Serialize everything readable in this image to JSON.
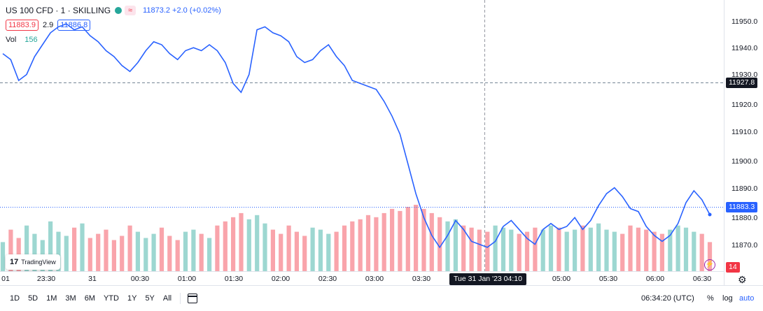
{
  "symbol": {
    "title": "US 100 CFD · 1 · SKILLING",
    "quote": "11873.2  +2.0 (+0.02%)",
    "sell": "11883.9",
    "spread": "2.9",
    "buy": "11886.8",
    "vol_label": "Vol",
    "vol_value": "156",
    "badge": "≈"
  },
  "colors": {
    "line": "#2962ff",
    "vol_up": "#26a69a",
    "vol_down": "#f23645",
    "last_tag": "#2962ff",
    "crosshair_tag": "#131722"
  },
  "price_axis": {
    "labels": [
      "11950.0",
      "11940.0",
      "11930.0",
      "11920.0",
      "11910.0",
      "11900.0",
      "11890.0",
      "11880.0",
      "11870.0"
    ],
    "crosshair_price": "11927.8",
    "last_price": "11883.3",
    "volume_value": "14"
  },
  "time_axis": {
    "labels": [
      "01",
      "23:30",
      "31",
      "00:30",
      "01:00",
      "01:30",
      "02:00",
      "02:30",
      "03:00",
      "03:30",
      "04:10",
      "05:00",
      "05:30",
      "06:00",
      "06:30"
    ],
    "crosshair_label": "Tue 31 Jan '23   04:10"
  },
  "logo": {
    "text": "TradingView"
  },
  "chart_data": {
    "type": "line",
    "series": [
      {
        "values": [
          11937,
          11935,
          11928,
          11930,
          11936,
          11940,
          11944,
          11946,
          11947,
          11945,
          11946,
          11943,
          11941,
          11938,
          11936,
          11933,
          11931,
          11934,
          11938,
          11941,
          11940,
          11937,
          11935,
          11938,
          11939,
          11938,
          11940,
          11938,
          11934,
          11927,
          11924,
          11930,
          11945,
          11946,
          11944,
          11943,
          11941,
          11936,
          11934,
          11935,
          11938,
          11940,
          11936,
          11933,
          11928,
          11927,
          11926,
          11925,
          11921,
          11916,
          11910,
          11900,
          11890,
          11882,
          11876,
          11872,
          11876,
          11881,
          11878,
          11874,
          11873,
          11872,
          11874,
          11879,
          11881,
          11878,
          11875,
          11873,
          11878,
          11880,
          11878,
          11879,
          11882,
          11878,
          11881,
          11886,
          11890,
          11892,
          11889,
          11885,
          11884,
          11879,
          11876,
          11874,
          11876,
          11880,
          11887,
          11891,
          11888,
          11883
        ]
      }
    ],
    "volume_values": [
      14,
      20,
      16,
      22,
      18,
      15,
      24,
      19,
      17,
      21,
      23,
      16,
      18,
      20,
      15,
      17,
      22,
      19,
      16,
      18,
      21,
      17,
      15,
      19,
      20,
      18,
      16,
      22,
      24,
      26,
      28,
      25,
      27,
      23,
      20,
      18,
      22,
      19,
      17,
      21,
      20,
      18,
      19,
      22,
      24,
      25,
      27,
      26,
      28,
      30,
      29,
      31,
      32,
      30,
      28,
      26,
      24,
      25,
      22,
      21,
      20,
      19,
      22,
      21,
      20,
      18,
      19,
      21,
      20,
      22,
      21,
      19,
      20,
      22,
      21,
      23,
      20,
      19,
      18,
      22,
      21,
      20,
      19,
      18,
      20,
      22,
      21,
      19,
      18,
      14
    ],
    "ylim": [
      11864,
      11955
    ]
  },
  "controls": {
    "ranges": [
      "1D",
      "5D",
      "1M",
      "3M",
      "6M",
      "YTD",
      "1Y",
      "5Y",
      "All"
    ],
    "clock": "06:34:20 (UTC)",
    "percent": "%",
    "log": "log",
    "auto": "auto"
  }
}
